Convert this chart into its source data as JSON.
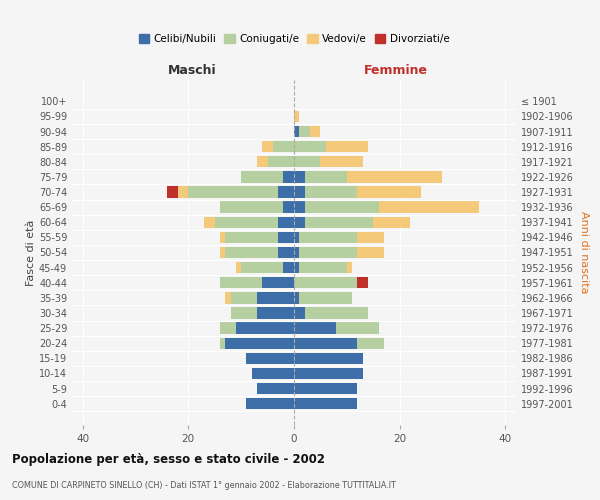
{
  "age_groups": [
    "0-4",
    "5-9",
    "10-14",
    "15-19",
    "20-24",
    "25-29",
    "30-34",
    "35-39",
    "40-44",
    "45-49",
    "50-54",
    "55-59",
    "60-64",
    "65-69",
    "70-74",
    "75-79",
    "80-84",
    "85-89",
    "90-94",
    "95-99",
    "100+"
  ],
  "birth_years": [
    "1997-2001",
    "1992-1996",
    "1987-1991",
    "1982-1986",
    "1977-1981",
    "1972-1976",
    "1967-1971",
    "1962-1966",
    "1957-1961",
    "1952-1956",
    "1947-1951",
    "1942-1946",
    "1937-1941",
    "1932-1936",
    "1927-1931",
    "1922-1926",
    "1917-1921",
    "1912-1916",
    "1907-1911",
    "1902-1906",
    "≤ 1901"
  ],
  "colors": {
    "celibe": "#3d6ea8",
    "coniugato": "#b5cfa0",
    "vedovo": "#f5c97a",
    "divorziato": "#c0302a"
  },
  "maschi": {
    "celibe": [
      9,
      7,
      8,
      9,
      13,
      11,
      7,
      7,
      6,
      2,
      3,
      3,
      3,
      2,
      3,
      2,
      0,
      0,
      0,
      0,
      0
    ],
    "coniugato": [
      0,
      0,
      0,
      0,
      1,
      3,
      5,
      5,
      8,
      8,
      10,
      10,
      12,
      12,
      17,
      8,
      5,
      4,
      0,
      0,
      0
    ],
    "vedovo": [
      0,
      0,
      0,
      0,
      0,
      0,
      0,
      1,
      0,
      1,
      1,
      1,
      2,
      0,
      2,
      0,
      2,
      2,
      0,
      0,
      0
    ],
    "divorziato": [
      0,
      0,
      0,
      0,
      0,
      0,
      0,
      0,
      0,
      0,
      0,
      0,
      0,
      0,
      2,
      0,
      0,
      0,
      0,
      0,
      0
    ]
  },
  "femmine": {
    "nubile": [
      12,
      12,
      13,
      13,
      12,
      8,
      2,
      1,
      0,
      1,
      1,
      1,
      2,
      2,
      2,
      2,
      0,
      0,
      1,
      0,
      0
    ],
    "coniugata": [
      0,
      0,
      0,
      0,
      5,
      8,
      12,
      10,
      12,
      9,
      11,
      11,
      13,
      14,
      10,
      8,
      5,
      6,
      2,
      0,
      0
    ],
    "vedova": [
      0,
      0,
      0,
      0,
      0,
      0,
      0,
      0,
      0,
      1,
      5,
      5,
      7,
      19,
      12,
      18,
      8,
      8,
      2,
      1,
      0
    ],
    "divorziata": [
      0,
      0,
      0,
      0,
      0,
      0,
      0,
      0,
      2,
      0,
      0,
      0,
      0,
      0,
      0,
      0,
      0,
      0,
      0,
      0,
      0
    ]
  },
  "xlim": [
    -42,
    42
  ],
  "xticks": [
    -40,
    -20,
    0,
    20,
    40
  ],
  "xticklabels": [
    "40",
    "20",
    "0",
    "20",
    "40"
  ],
  "title": "Popolazione per età, sesso e stato civile - 2002",
  "subtitle": "COMUNE DI CARPINETO SINELLO (CH) - Dati ISTAT 1° gennaio 2002 - Elaborazione TUTTITALIA.IT",
  "ylabel_left": "Fasce di età",
  "ylabel_right": "Anni di nascita",
  "maschi_label": "Maschi",
  "femmine_label": "Femmine",
  "legend_labels": [
    "Celibi/Nubili",
    "Coniugati/e",
    "Vedovi/e",
    "Divorziati/e"
  ],
  "bg_color": "#f5f5f5",
  "bar_height": 0.75
}
